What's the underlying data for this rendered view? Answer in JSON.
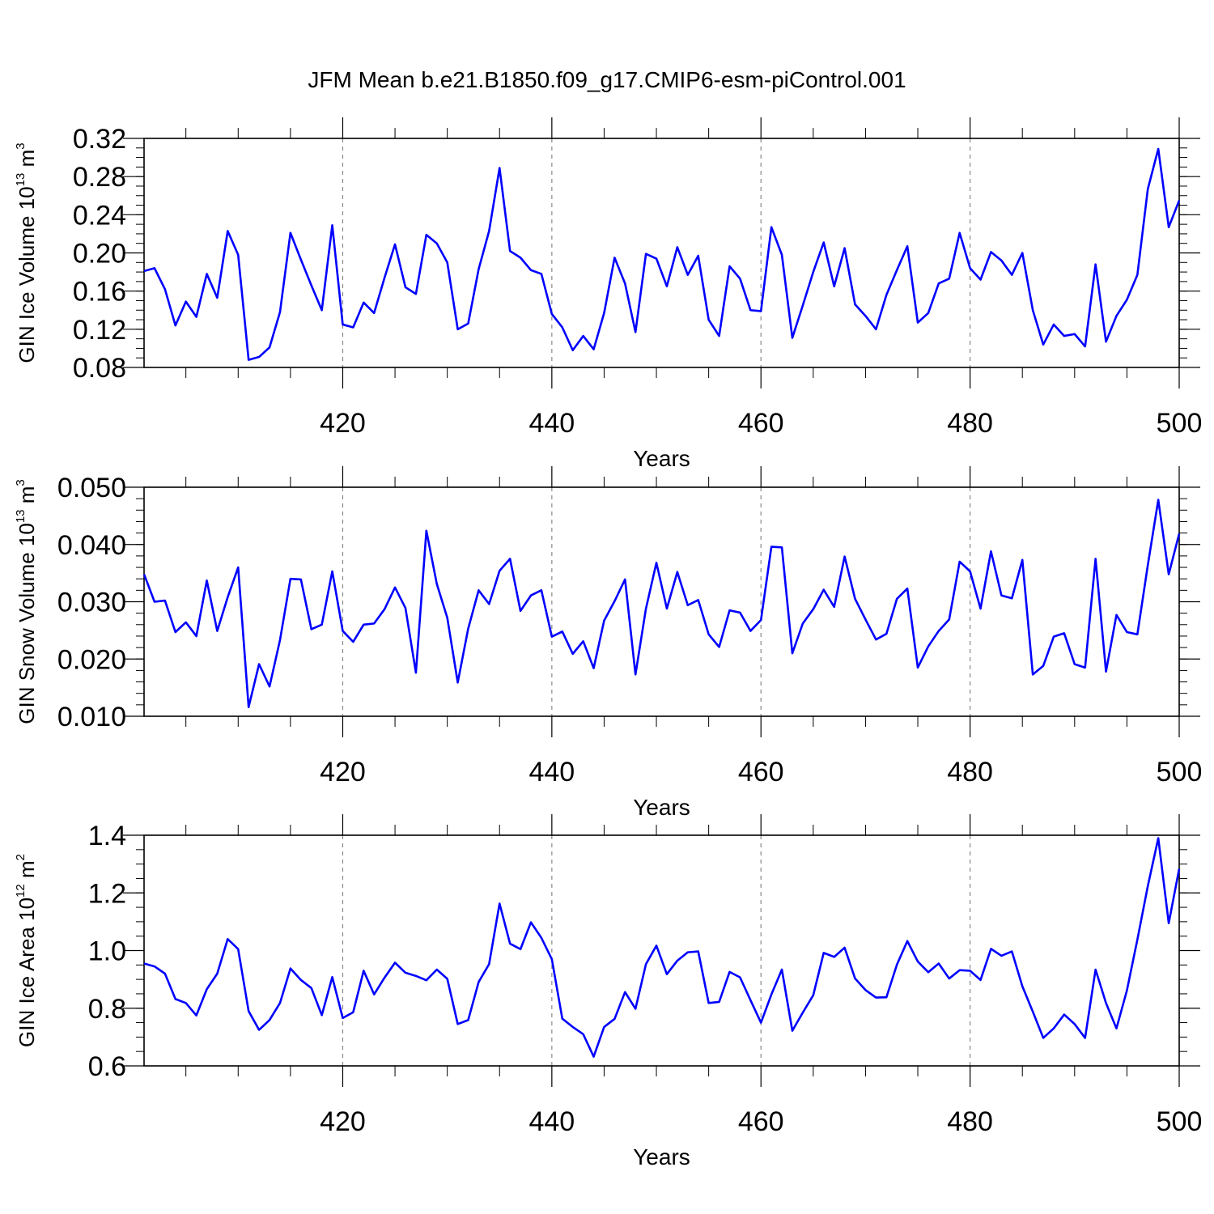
{
  "title": "JFM Mean b.e21.B1850.f09_g17.CMIP6-esm-piControl.001",
  "colors": {
    "line": "#0000ff",
    "axis": "#000000",
    "grid": "#888888"
  },
  "chart_data": [
    {
      "type": "line",
      "title": "JFM Mean b.e21.B1850.f09_g17.CMIP6-esm-piControl.001",
      "xlabel": "Years",
      "ylabel": {
        "base": "GIN Ice Volume 10",
        "exp": "13",
        "unit": " m",
        "unit_exp": "3"
      },
      "xlim": [
        401,
        500
      ],
      "ylim": [
        0.08,
        0.32
      ],
      "x_ticks": [
        "420",
        "440",
        "460",
        "480",
        "500"
      ],
      "y_ticks": [
        "0.08",
        "0.12",
        "0.16",
        "0.20",
        "0.24",
        "0.28",
        "0.32"
      ],
      "grid": "vertical dashed at major x ticks",
      "x_start": 401,
      "values": [
        0.181,
        0.184,
        0.162,
        0.124,
        0.149,
        0.133,
        0.178,
        0.153,
        0.223,
        0.198,
        0.088,
        0.091,
        0.101,
        0.138,
        0.221,
        0.193,
        0.166,
        0.14,
        0.229,
        0.125,
        0.122,
        0.148,
        0.137,
        0.174,
        0.209,
        0.164,
        0.157,
        0.219,
        0.21,
        0.19,
        0.12,
        0.126,
        0.183,
        0.223,
        0.289,
        0.202,
        0.195,
        0.182,
        0.178,
        0.136,
        0.122,
        0.098,
        0.113,
        0.099,
        0.137,
        0.195,
        0.168,
        0.117,
        0.199,
        0.194,
        0.165,
        0.206,
        0.177,
        0.197,
        0.13,
        0.113,
        0.186,
        0.173,
        0.14,
        0.139,
        0.227,
        0.198,
        0.111,
        0.145,
        0.18,
        0.211,
        0.165,
        0.205,
        0.146,
        0.134,
        0.12,
        0.156,
        0.182,
        0.207,
        0.127,
        0.137,
        0.168,
        0.173,
        0.221,
        0.184,
        0.172,
        0.201,
        0.192,
        0.177,
        0.2,
        0.14,
        0.104,
        0.125,
        0.113,
        0.115,
        0.102,
        0.188,
        0.107,
        0.134,
        0.151,
        0.177,
        0.267,
        0.309,
        0.227,
        0.255
      ]
    },
    {
      "type": "line",
      "xlabel": "Years",
      "ylabel": {
        "base": "GIN Snow Volume 10",
        "exp": "13",
        "unit": " m",
        "unit_exp": "3"
      },
      "xlim": [
        401,
        500
      ],
      "ylim": [
        0.01,
        0.05
      ],
      "x_ticks": [
        "420",
        "440",
        "460",
        "480",
        "500"
      ],
      "y_ticks": [
        "0.010",
        "0.020",
        "0.030",
        "0.040",
        "0.050"
      ],
      "grid": "vertical dashed at major x ticks",
      "x_start": 401,
      "values": [
        0.0348,
        0.03,
        0.0302,
        0.0247,
        0.0264,
        0.024,
        0.0337,
        0.0249,
        0.0308,
        0.036,
        0.0116,
        0.0191,
        0.0152,
        0.0233,
        0.034,
        0.0339,
        0.0252,
        0.026,
        0.0353,
        0.0249,
        0.023,
        0.026,
        0.0262,
        0.0287,
        0.0325,
        0.0289,
        0.0176,
        0.0424,
        0.0331,
        0.0272,
        0.0159,
        0.0253,
        0.032,
        0.0296,
        0.0354,
        0.0375,
        0.0284,
        0.0311,
        0.032,
        0.0239,
        0.0248,
        0.0209,
        0.0231,
        0.0184,
        0.0267,
        0.0301,
        0.0339,
        0.0173,
        0.0288,
        0.0368,
        0.0288,
        0.0352,
        0.0294,
        0.0303,
        0.0243,
        0.0221,
        0.0285,
        0.0281,
        0.0249,
        0.0268,
        0.0396,
        0.0395,
        0.021,
        0.0262,
        0.0287,
        0.0321,
        0.0291,
        0.0379,
        0.0305,
        0.0269,
        0.0234,
        0.0244,
        0.0305,
        0.0323,
        0.0185,
        0.0222,
        0.0249,
        0.0269,
        0.037,
        0.0353,
        0.0288,
        0.0388,
        0.0311,
        0.0306,
        0.0373,
        0.0173,
        0.0188,
        0.0239,
        0.0245,
        0.0191,
        0.0185,
        0.0375,
        0.0178,
        0.0277,
        0.0247,
        0.0243,
        0.0364,
        0.0478,
        0.0348,
        0.0419
      ]
    },
    {
      "type": "line",
      "xlabel": "Years",
      "ylabel": {
        "base": "GIN Ice Area 10",
        "exp": "12",
        "unit": " m",
        "unit_exp": "2"
      },
      "xlim": [
        401,
        500
      ],
      "ylim": [
        0.6,
        1.4
      ],
      "x_ticks": [
        "420",
        "440",
        "460",
        "480",
        "500"
      ],
      "y_ticks": [
        "0.6",
        "0.8",
        "1.0",
        "1.2",
        "1.4"
      ],
      "grid": "vertical dashed at major x ticks",
      "x_start": 401,
      "values": [
        0.955,
        0.945,
        0.92,
        0.832,
        0.818,
        0.775,
        0.866,
        0.92,
        1.04,
        1.005,
        0.79,
        0.725,
        0.759,
        0.818,
        0.938,
        0.898,
        0.87,
        0.776,
        0.908,
        0.766,
        0.786,
        0.93,
        0.848,
        0.906,
        0.958,
        0.923,
        0.912,
        0.897,
        0.934,
        0.902,
        0.745,
        0.759,
        0.891,
        0.953,
        1.163,
        1.024,
        1.005,
        1.098,
        1.044,
        0.97,
        0.764,
        0.735,
        0.71,
        0.632,
        0.735,
        0.763,
        0.856,
        0.798,
        0.953,
        1.017,
        0.918,
        0.965,
        0.994,
        0.997,
        0.818,
        0.822,
        0.926,
        0.907,
        0.828,
        0.75,
        0.848,
        0.934,
        0.722,
        0.785,
        0.845,
        0.992,
        0.978,
        1.01,
        0.903,
        0.863,
        0.837,
        0.838,
        0.951,
        1.033,
        0.962,
        0.925,
        0.955,
        0.903,
        0.932,
        0.93,
        0.898,
        1.006,
        0.982,
        0.997,
        0.876,
        0.788,
        0.697,
        0.73,
        0.778,
        0.745,
        0.697,
        0.934,
        0.818,
        0.73,
        0.862,
        1.038,
        1.224,
        1.39,
        1.095,
        1.284
      ]
    }
  ]
}
